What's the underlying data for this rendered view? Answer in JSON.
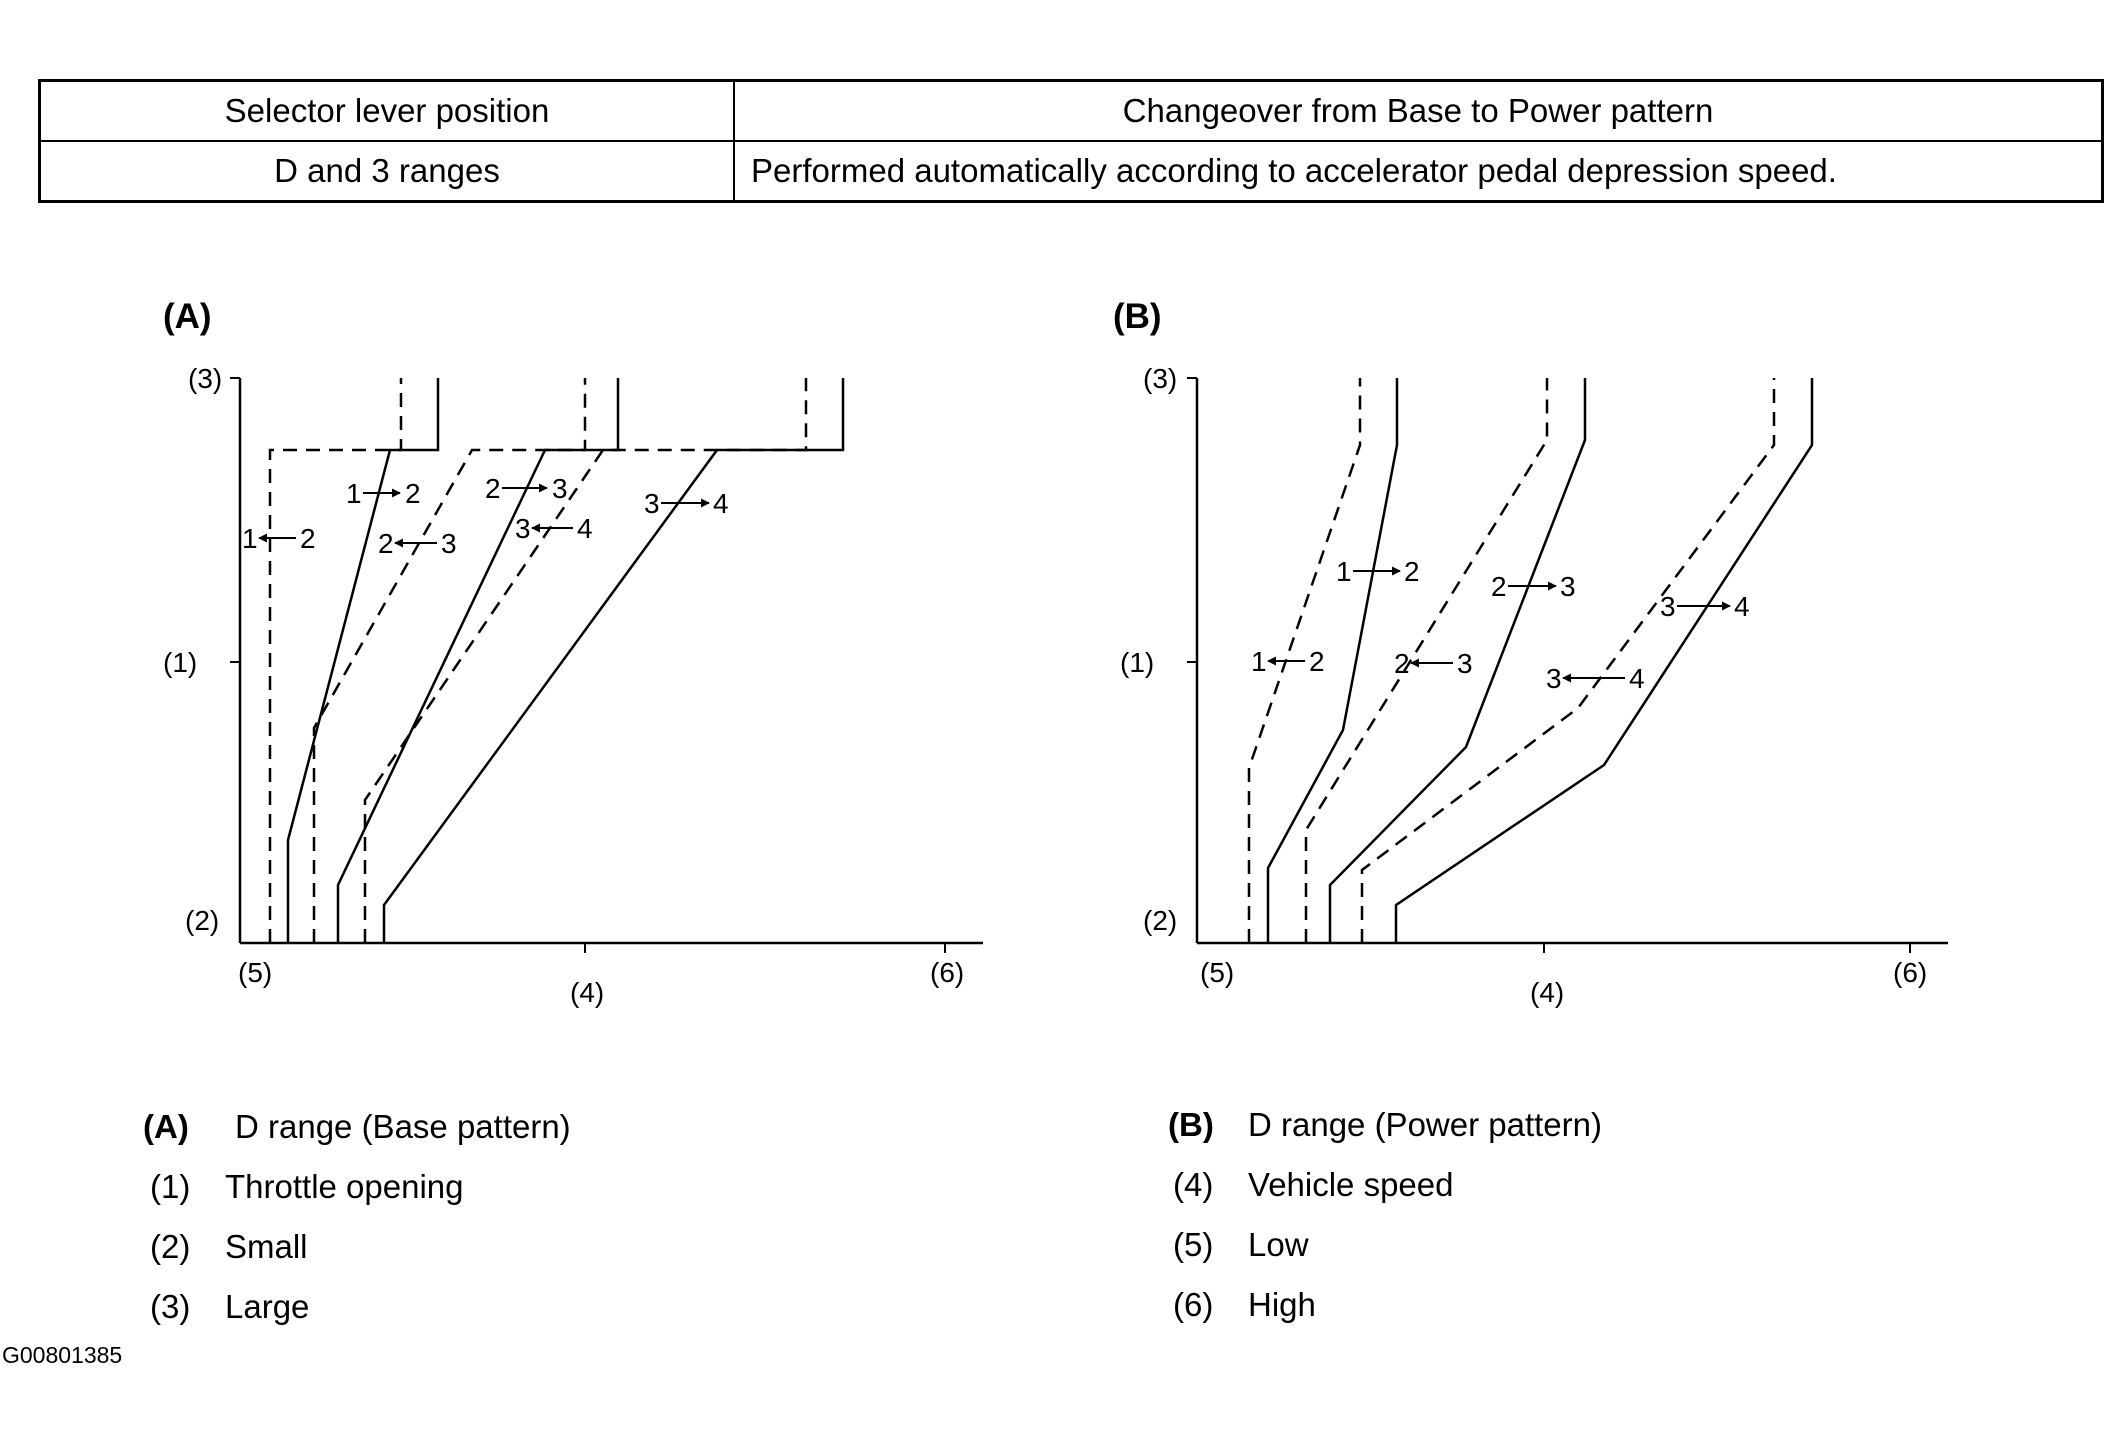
{
  "table": {
    "header": {
      "position": "Selector lever position",
      "changeover": "Changeover from Base to Power pattern"
    },
    "row": {
      "position": "D and 3 ranges",
      "changeover": "Performed automatically according to accelerator pedal depression speed."
    }
  },
  "diagrams": {
    "a": {
      "label": "(A)",
      "y_top": "(3)",
      "y_mid": "(1)",
      "y_bottom": "(2)",
      "x_left": "(5)",
      "x_mid": "(4)",
      "x_right": "(6)",
      "shift_labels": [
        {
          "from": "1",
          "to": "2",
          "dir": "up"
        },
        {
          "from": "1",
          "to": "2",
          "dir": "down"
        },
        {
          "from": "2",
          "to": "3",
          "dir": "up"
        },
        {
          "from": "2",
          "to": "3",
          "dir": "down"
        },
        {
          "from": "3",
          "to": "4",
          "dir": "down"
        },
        {
          "from": "3",
          "to": "4",
          "dir": "up"
        }
      ]
    },
    "b": {
      "label": "(B)",
      "y_top": "(3)",
      "y_mid": "(1)",
      "y_bottom": "(2)",
      "x_left": "(5)",
      "x_mid": "(4)",
      "x_right": "(6)",
      "shift_labels": [
        {
          "from": "1",
          "to": "2",
          "dir": "up"
        },
        {
          "from": "1",
          "to": "2",
          "dir": "down"
        },
        {
          "from": "2",
          "to": "3",
          "dir": "up"
        },
        {
          "from": "2",
          "to": "3",
          "dir": "down"
        },
        {
          "from": "3",
          "to": "4",
          "dir": "up"
        },
        {
          "from": "3",
          "to": "4",
          "dir": "down"
        }
      ]
    }
  },
  "legend": [
    {
      "key": "(A)",
      "text": "D range (Base pattern)",
      "bold_key": true
    },
    {
      "key": "(1)",
      "text": "Throttle opening",
      "bold_key": false
    },
    {
      "key": "(2)",
      "text": "Small",
      "bold_key": false
    },
    {
      "key": "(3)",
      "text": "Large",
      "bold_key": false
    },
    {
      "key": "(B)",
      "text": "D range (Power pattern)",
      "bold_key": true
    },
    {
      "key": "(4)",
      "text": "Vehicle speed",
      "bold_key": false
    },
    {
      "key": "(5)",
      "text": "Low",
      "bold_key": false
    },
    {
      "key": "(6)",
      "text": "High",
      "bold_key": false
    }
  ],
  "reference_code": "G00801385"
}
